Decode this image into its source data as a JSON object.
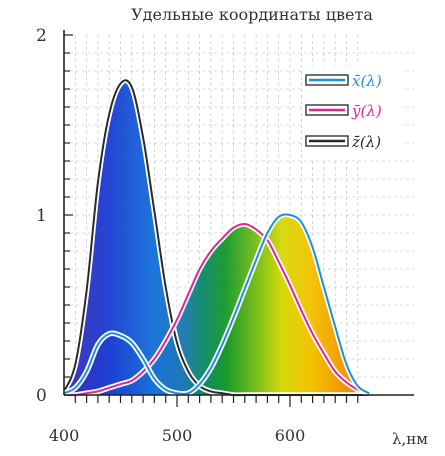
{
  "chart_data": {
    "type": "line",
    "title": "Удельные координаты цвета",
    "xlabel": "λ,нм",
    "ylabel": "",
    "xlim": [
      400,
      640
    ],
    "ylim": [
      0,
      2
    ],
    "x_ticks": [
      400,
      500,
      600
    ],
    "y_ticks": [
      0,
      1,
      2
    ],
    "x_tick_labels": [
      "400",
      "500",
      "600"
    ],
    "y_tick_labels": [
      "0",
      "1",
      "2"
    ],
    "grid": true,
    "legend_position": "top-right",
    "x": [
      400,
      410,
      420,
      430,
      440,
      450,
      460,
      470,
      480,
      490,
      500,
      510,
      520,
      530,
      540,
      550,
      560,
      570,
      580,
      590,
      600,
      610,
      620,
      630,
      640
    ],
    "series": [
      {
        "name": "x̄(λ)",
        "color": "#1b8fe0",
        "values": [
          0.01,
          0.04,
          0.13,
          0.28,
          0.34,
          0.33,
          0.29,
          0.2,
          0.09,
          0.03,
          0.01,
          0.01,
          0.06,
          0.15,
          0.28,
          0.43,
          0.59,
          0.75,
          0.9,
          0.99,
          1.0,
          0.96,
          0.82,
          0.6,
          0.38
        ]
      },
      {
        "name": "ȳ(λ)",
        "color": "#e3258f",
        "values": [
          0.0,
          0.0,
          0.01,
          0.02,
          0.04,
          0.06,
          0.08,
          0.13,
          0.2,
          0.3,
          0.42,
          0.56,
          0.7,
          0.8,
          0.87,
          0.93,
          0.95,
          0.92,
          0.86,
          0.74,
          0.61,
          0.47,
          0.34,
          0.23,
          0.13
        ]
      },
      {
        "name": "z̄(λ)",
        "color": "#2b2b2b",
        "values": [
          0.02,
          0.17,
          0.58,
          1.18,
          1.56,
          1.73,
          1.71,
          1.43,
          1.02,
          0.6,
          0.29,
          0.13,
          0.05,
          0.02,
          0.01,
          0.0,
          0.0,
          0.0,
          0.0,
          0.0,
          0.0,
          0.0,
          0.0,
          0.0,
          0.0
        ]
      }
    ],
    "tail": {
      "x": [
        650,
        660,
        670
      ],
      "x_values": [
        0.17,
        0.05,
        0.01
      ],
      "y_values": [
        0.07,
        0.03,
        0.01
      ]
    }
  }
}
